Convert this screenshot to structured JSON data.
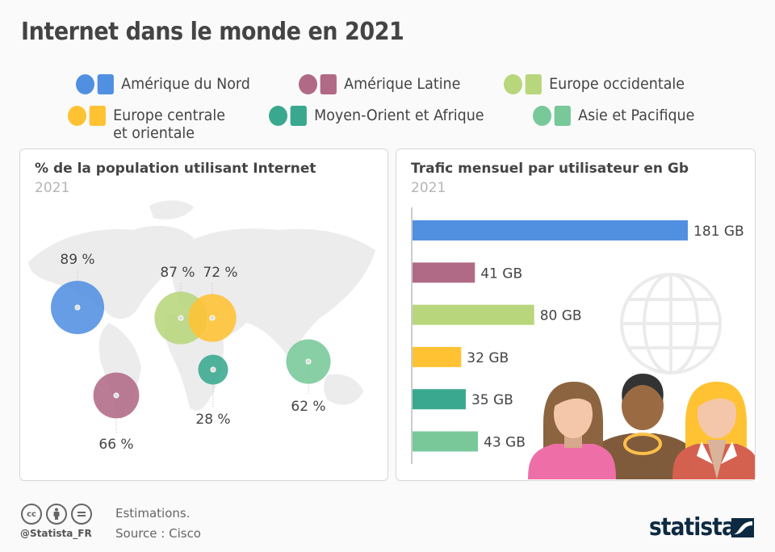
{
  "title": "Internet dans le monde en 2021",
  "legend": [
    {
      "label": "Amérique du Nord",
      "color": "#5190e0"
    },
    {
      "label": "Amérique Latine",
      "color": "#b06a86"
    },
    {
      "label": "Europe occidentale",
      "color": "#b8d67c"
    },
    {
      "label": "Europe centrale\net orientale",
      "color": "#ffc233"
    },
    {
      "label": "Moyen-Orient et Afrique",
      "color": "#3aa88e"
    },
    {
      "label": "Asie et Pacifique",
      "color": "#78c89a"
    }
  ],
  "chart_data": [
    {
      "type": "scatter",
      "title": "% de la population utilisant Internet",
      "subtitle": "2021",
      "unit": "%",
      "categories": [
        "Amérique du Nord",
        "Amérique Latine",
        "Europe occidentale",
        "Europe centrale et orientale",
        "Moyen-Orient et Afrique",
        "Asie et Pacifique"
      ],
      "values": [
        89,
        66,
        87,
        72,
        28,
        62
      ],
      "labels": [
        "89 %",
        "66 %",
        "87 %",
        "72 %",
        "28 %",
        "62 %"
      ],
      "background": "world map"
    },
    {
      "type": "bar",
      "orientation": "horizontal",
      "title": "Trafic mensuel par utilisateur en Gb",
      "subtitle": "2021",
      "categories": [
        "Amérique du Nord",
        "Amérique Latine",
        "Europe occidentale",
        "Europe centrale et orientale",
        "Moyen-Orient et Afrique",
        "Asie et Pacifique"
      ],
      "values": [
        181,
        41,
        80,
        32,
        35,
        43
      ],
      "labels": [
        "181 GB",
        "41 GB",
        "80 GB",
        "32 GB",
        "35 GB",
        "43 GB"
      ],
      "xlim": [
        0,
        181
      ]
    }
  ],
  "footer": {
    "handle": "@Statista_FR",
    "note": "Estimations.",
    "source": "Source : Cisco",
    "brand": "statista",
    "license_icons": [
      "cc",
      "by",
      "nd"
    ]
  }
}
